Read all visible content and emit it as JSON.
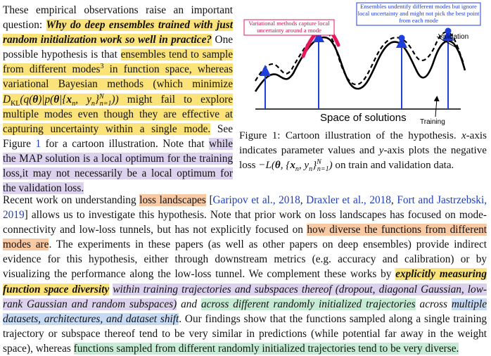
{
  "left_text": {
    "p1": "These empirical observations raise an important question:",
    "q": "Why do deep ensembles trained with just random initialization work so well in practice?",
    "p2": "One possible hypothesis is that",
    "h1a": "ensembles tend to sample from different modes",
    "fn": "3",
    "h1b": "in function space, whereas variational Bayesian methods (which minimize",
    "kl_tail": "might fail to explore multiple modes even though they are effective at capturing uncertainty within a single mode.",
    "see": "See Figure",
    "fig_ref": "1",
    "see2": "for a cartoon illustration. Note that",
    "h2": "while the MAP solution is a local optimum for the training loss,it may not necessarily be a local optimum for the validation loss."
  },
  "figure": {
    "label_variational": "Variational methods capture local uncertainty around a mode",
    "label_ensembles": "Ensembles undentify different modes but ignore local uncertainty and might not pick the best point from each mode",
    "label_validation": "Validation",
    "label_training": "Training",
    "axis_label": "Space of solutions",
    "colors": {
      "blue": "#1f3fd8",
      "pink": "#e8175d",
      "curve": "#000000"
    }
  },
  "caption": {
    "label": "Figure 1:",
    "text1": "Cartoon illustration of the hypothesis.",
    "xv": "x",
    "text2": "-axis indicates parameter values and",
    "yv": "y",
    "text3": "-axis plots the negative loss",
    "text4": "on train and validation data."
  },
  "bottom": {
    "s1": "Recent work on understanding",
    "loss_landscapes": "loss landscapes",
    "cites": [
      "Garipov et al., 2018",
      "Draxler et al., 2018",
      "Fort and Jastrzebski, 2019"
    ],
    "s2": "allows us to investigate this hypothesis. Note that prior work on loss landscapes has focused on mode-connectivity and low-loss tunnels, but has not explicitly focused on",
    "h_diverse": "how diverse the functions from different modes are",
    "s3": "The experiments in these papers (as well as other papers on deep ensembles) provide indirect evidence for this hypothesis, either through downstream metrics (e.g. accuracy and calibration) or by visualizing the performance along the low-loss tunnel. We complement these works by",
    "h_explicit": "explicitly measuring function space diversity",
    "h_within": "within training trajectories and subspaces thereof (dropout, diagonal Gaussian, low-rank Gaussian and random subspaces)",
    "and": "and",
    "h_across": "across different randomly initialized trajectories",
    "across": "across",
    "h_multi": "multiple datasets, architectures, and dataset shift",
    "s4": "Our findings show that the functions sampled along a single training trajectory or subspace thereof tend to be very similar in predictions (while potential far away in the weight space), whereas",
    "h_final": "functions sampled from different randomly initialized trajectories tend to be very diverse."
  }
}
